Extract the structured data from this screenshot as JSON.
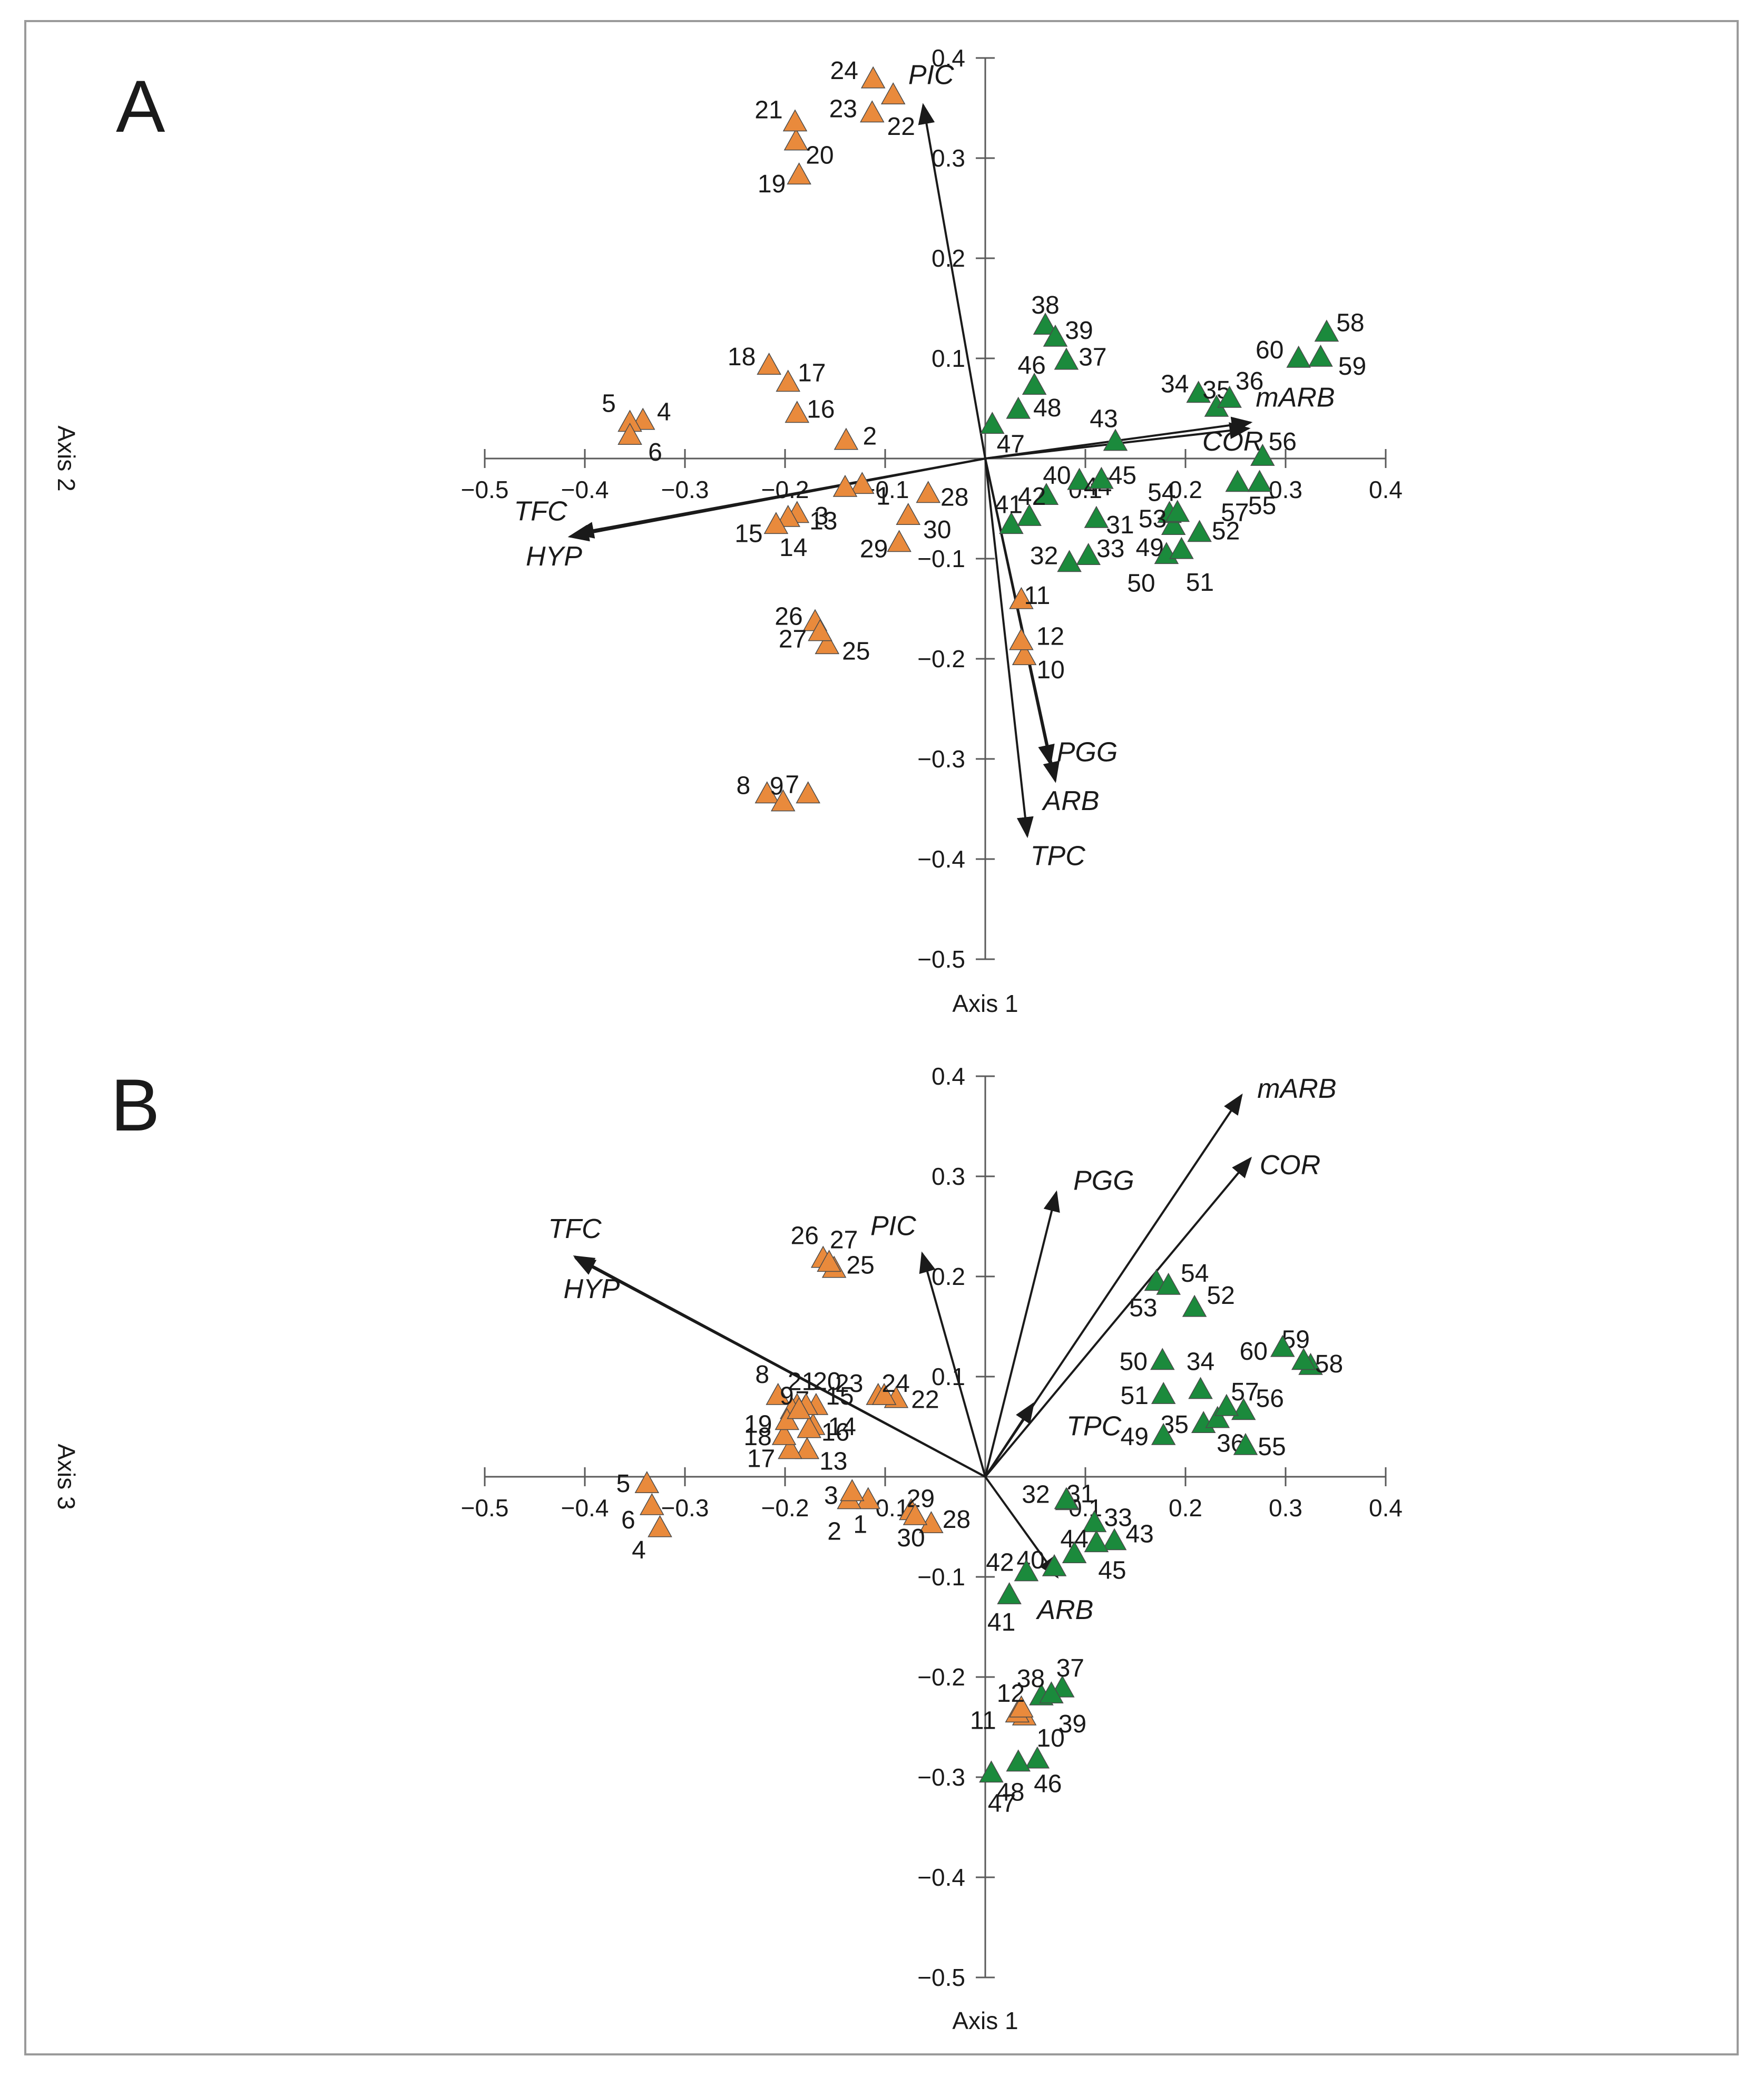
{
  "colors": {
    "group_a": "#e98a3c",
    "group_b": "#1b8a3c",
    "axis": "#5a5a5a",
    "vector": "#1a1a1a",
    "frame": "#9a9a9a"
  },
  "chart_data": [
    {
      "type": "scatter",
      "panel_label": "A",
      "xlabel": "Axis 1",
      "ylabel": "Axis 2",
      "xlim": [
        -0.5,
        0.4
      ],
      "ylim": [
        -0.5,
        0.4
      ],
      "x_ticks": [
        "−0.5",
        "−0.4",
        "−0.3",
        "−0.2",
        "−0.1",
        "0.1",
        "0.2",
        "0.3",
        "0.4"
      ],
      "y_ticks": [
        "0.4",
        "0.3",
        "0.2",
        "0.1",
        "−0.1",
        "−0.2",
        "−0.3",
        "−0.4",
        "−0.5"
      ],
      "series": [
        {
          "name": "orange",
          "color_key": "group_a",
          "points": [
            {
              "label": "1",
              "x": -0.123,
              "y": -0.027
            },
            {
              "label": "2",
              "x": -0.139,
              "y": 0.017
            },
            {
              "label": "3",
              "x": -0.14,
              "y": -0.03
            },
            {
              "label": "4",
              "x": -0.342,
              "y": 0.037
            },
            {
              "label": "5",
              "x": -0.355,
              "y": 0.035
            },
            {
              "label": "6",
              "x": -0.355,
              "y": 0.022
            },
            {
              "label": "7",
              "x": -0.177,
              "y": -0.336
            },
            {
              "label": "8",
              "x": -0.218,
              "y": -0.336
            },
            {
              "label": "9",
              "x": -0.202,
              "y": -0.344
            },
            {
              "label": "10",
              "x": 0.039,
              "y": -0.198
            },
            {
              "label": "11",
              "x": 0.036,
              "y": -0.142
            },
            {
              "label": "12",
              "x": 0.036,
              "y": -0.183
            },
            {
              "label": "13",
              "x": -0.188,
              "y": -0.056
            },
            {
              "label": "14",
              "x": -0.197,
              "y": -0.06
            },
            {
              "label": "15",
              "x": -0.209,
              "y": -0.067
            },
            {
              "label": "16",
              "x": -0.188,
              "y": 0.044
            },
            {
              "label": "17",
              "x": -0.197,
              "y": 0.075
            },
            {
              "label": "18",
              "x": -0.216,
              "y": 0.092
            },
            {
              "label": "19",
              "x": -0.186,
              "y": 0.282
            },
            {
              "label": "20",
              "x": -0.189,
              "y": 0.316
            },
            {
              "label": "21",
              "x": -0.19,
              "y": 0.335
            },
            {
              "label": "22",
              "x": -0.092,
              "y": 0.362
            },
            {
              "label": "23",
              "x": -0.113,
              "y": 0.344
            },
            {
              "label": "24",
              "x": -0.112,
              "y": 0.378
            },
            {
              "label": "25",
              "x": -0.158,
              "y": -0.187
            },
            {
              "label": "26",
              "x": -0.17,
              "y": -0.164
            },
            {
              "label": "27",
              "x": -0.165,
              "y": -0.174
            },
            {
              "label": "28",
              "x": -0.057,
              "y": -0.036
            },
            {
              "label": "29",
              "x": -0.086,
              "y": -0.085
            },
            {
              "label": "30",
              "x": -0.077,
              "y": -0.058
            }
          ]
        },
        {
          "name": "green",
          "color_key": "group_b",
          "points": [
            {
              "label": "31",
              "x": 0.111,
              "y": -0.061
            },
            {
              "label": "32",
              "x": 0.084,
              "y": -0.105
            },
            {
              "label": "33",
              "x": 0.103,
              "y": -0.098
            },
            {
              "label": "34",
              "x": 0.213,
              "y": 0.064
            },
            {
              "label": "35",
              "x": 0.231,
              "y": 0.05
            },
            {
              "label": "36",
              "x": 0.244,
              "y": 0.059
            },
            {
              "label": "37",
              "x": 0.081,
              "y": 0.097
            },
            {
              "label": "38",
              "x": 0.06,
              "y": 0.132
            },
            {
              "label": "39",
              "x": 0.07,
              "y": 0.12
            },
            {
              "label": "40",
              "x": 0.061,
              "y": -0.038
            },
            {
              "label": "41",
              "x": 0.026,
              "y": -0.067
            },
            {
              "label": "42",
              "x": 0.044,
              "y": -0.059
            },
            {
              "label": "43",
              "x": 0.13,
              "y": 0.016
            },
            {
              "label": "44",
              "x": 0.094,
              "y": -0.023
            },
            {
              "label": "45",
              "x": 0.116,
              "y": -0.022
            },
            {
              "label": "46",
              "x": 0.049,
              "y": 0.072
            },
            {
              "label": "47",
              "x": 0.007,
              "y": 0.033
            },
            {
              "label": "48",
              "x": 0.033,
              "y": 0.048
            },
            {
              "label": "49",
              "x": 0.188,
              "y": -0.068
            },
            {
              "label": "50",
              "x": 0.181,
              "y": -0.097
            },
            {
              "label": "51",
              "x": 0.196,
              "y": -0.092
            },
            {
              "label": "52",
              "x": 0.214,
              "y": -0.075
            },
            {
              "label": "53",
              "x": 0.184,
              "y": -0.056
            },
            {
              "label": "54",
              "x": 0.192,
              "y": -0.055
            },
            {
              "label": "55",
              "x": 0.274,
              "y": -0.025
            },
            {
              "label": "56",
              "x": 0.277,
              "y": 0.001
            },
            {
              "label": "57",
              "x": 0.252,
              "y": -0.025
            },
            {
              "label": "58",
              "x": 0.341,
              "y": 0.125
            },
            {
              "label": "59",
              "x": 0.335,
              "y": 0.1
            },
            {
              "label": "60",
              "x": 0.313,
              "y": 0.099
            }
          ]
        }
      ],
      "vectors": [
        {
          "label": "PIC",
          "x": -0.062,
          "y": 0.353
        },
        {
          "label": "TFC",
          "x": -0.41,
          "y": -0.075
        },
        {
          "label": "HYP",
          "x": -0.415,
          "y": -0.078
        },
        {
          "label": "mARB",
          "x": 0.265,
          "y": 0.036
        },
        {
          "label": "COR",
          "x": 0.263,
          "y": 0.03
        },
        {
          "label": "PGG",
          "x": 0.065,
          "y": -0.305
        },
        {
          "label": "ARB",
          "x": 0.07,
          "y": -0.322
        },
        {
          "label": "TPC",
          "x": 0.042,
          "y": -0.377
        }
      ]
    },
    {
      "type": "scatter",
      "panel_label": "B",
      "xlabel": "Axis 1",
      "ylabel": "Axis 3",
      "xlim": [
        -0.5,
        0.4
      ],
      "ylim": [
        -0.5,
        0.4
      ],
      "x_ticks": [
        "−0.5",
        "−0.4",
        "−0.3",
        "−0.2",
        "−0.1",
        "0.1",
        "0.2",
        "0.3",
        "0.4"
      ],
      "y_ticks": [
        "0.4",
        "0.3",
        "0.2",
        "0.1",
        "−0.1",
        "−0.2",
        "−0.3",
        "−0.4",
        "−0.5"
      ],
      "series": [
        {
          "name": "orange",
          "color_key": "group_a",
          "points": [
            {
              "label": "1",
              "x": -0.117,
              "y": -0.024
            },
            {
              "label": "2",
              "x": -0.136,
              "y": -0.024
            },
            {
              "label": "3",
              "x": -0.133,
              "y": -0.016
            },
            {
              "label": "4",
              "x": -0.325,
              "y": -0.052
            },
            {
              "label": "5",
              "x": -0.338,
              "y": -0.008
            },
            {
              "label": "6",
              "x": -0.333,
              "y": -0.03
            },
            {
              "label": "7",
              "x": -0.188,
              "y": 0.07
            },
            {
              "label": "8",
              "x": -0.207,
              "y": 0.08
            },
            {
              "label": "9",
              "x": -0.193,
              "y": 0.066
            },
            {
              "label": "10",
              "x": 0.039,
              "y": -0.24
            },
            {
              "label": "11",
              "x": 0.032,
              "y": -0.237
            },
            {
              "label": "12",
              "x": 0.036,
              "y": -0.232
            },
            {
              "label": "13",
              "x": -0.178,
              "y": 0.026
            },
            {
              "label": "14",
              "x": -0.172,
              "y": 0.05
            },
            {
              "label": "15",
              "x": -0.169,
              "y": 0.07
            },
            {
              "label": "16",
              "x": -0.176,
              "y": 0.047
            },
            {
              "label": "17",
              "x": -0.195,
              "y": 0.026
            },
            {
              "label": "18",
              "x": -0.201,
              "y": 0.04
            },
            {
              "label": "19",
              "x": -0.198,
              "y": 0.055
            },
            {
              "label": "20",
              "x": -0.179,
              "y": 0.07
            },
            {
              "label": "21",
              "x": -0.186,
              "y": 0.066
            },
            {
              "label": "22",
              "x": -0.089,
              "y": 0.077
            },
            {
              "label": "23",
              "x": -0.107,
              "y": 0.08
            },
            {
              "label": "24",
              "x": -0.101,
              "y": 0.08
            },
            {
              "label": "25",
              "x": -0.151,
              "y": 0.207
            },
            {
              "label": "26",
              "x": -0.162,
              "y": 0.217
            },
            {
              "label": "27",
              "x": -0.156,
              "y": 0.213
            },
            {
              "label": "28",
              "x": -0.054,
              "y": -0.048
            },
            {
              "label": "29",
              "x": -0.074,
              "y": -0.035
            },
            {
              "label": "30",
              "x": -0.07,
              "y": -0.04
            }
          ]
        },
        {
          "name": "green",
          "color_key": "group_b",
          "points": [
            {
              "label": "31",
              "x": 0.082,
              "y": -0.025
            },
            {
              "label": "32",
              "x": 0.081,
              "y": -0.024
            },
            {
              "label": "33",
              "x": 0.109,
              "y": -0.047
            },
            {
              "label": "34",
              "x": 0.215,
              "y": 0.086
            },
            {
              "label": "35",
              "x": 0.218,
              "y": 0.052
            },
            {
              "label": "36",
              "x": 0.232,
              "y": 0.057
            },
            {
              "label": "37",
              "x": 0.077,
              "y": -0.212
            },
            {
              "label": "38",
              "x": 0.056,
              "y": -0.22
            },
            {
              "label": "39",
              "x": 0.066,
              "y": -0.218
            },
            {
              "label": "40",
              "x": 0.069,
              "y": -0.091
            },
            {
              "label": "41",
              "x": 0.024,
              "y": -0.119
            },
            {
              "label": "42",
              "x": 0.041,
              "y": -0.096
            },
            {
              "label": "43",
              "x": 0.129,
              "y": -0.065
            },
            {
              "label": "44",
              "x": 0.089,
              "y": -0.078
            },
            {
              "label": "45",
              "x": 0.111,
              "y": -0.067
            },
            {
              "label": "46",
              "x": 0.052,
              "y": -0.283
            },
            {
              "label": "47",
              "x": 0.006,
              "y": -0.297
            },
            {
              "label": "48",
              "x": 0.033,
              "y": -0.286
            },
            {
              "label": "49",
              "x": 0.178,
              "y": 0.04
            },
            {
              "label": "50",
              "x": 0.177,
              "y": 0.115
            },
            {
              "label": "51",
              "x": 0.178,
              "y": 0.081
            },
            {
              "label": "52",
              "x": 0.209,
              "y": 0.168
            },
            {
              "label": "53",
              "x": 0.171,
              "y": 0.194
            },
            {
              "label": "54",
              "x": 0.183,
              "y": 0.19
            },
            {
              "label": "55",
              "x": 0.26,
              "y": 0.03
            },
            {
              "label": "56",
              "x": 0.258,
              "y": 0.065
            },
            {
              "label": "57",
              "x": 0.241,
              "y": 0.069
            },
            {
              "label": "58",
              "x": 0.325,
              "y": 0.11
            },
            {
              "label": "59",
              "x": 0.318,
              "y": 0.115
            },
            {
              "label": "60",
              "x": 0.297,
              "y": 0.128
            }
          ]
        }
      ],
      "vectors": [
        {
          "label": "TFC",
          "x": -0.41,
          "y": 0.22
        },
        {
          "label": "HYP",
          "x": -0.409,
          "y": 0.218
        },
        {
          "label": "PIC",
          "x": -0.063,
          "y": 0.223
        },
        {
          "label": "PGG",
          "x": 0.071,
          "y": 0.284
        },
        {
          "label": "mARB",
          "x": 0.256,
          "y": 0.381
        },
        {
          "label": "COR",
          "x": 0.265,
          "y": 0.318
        },
        {
          "label": "TPC",
          "x": 0.048,
          "y": 0.073
        },
        {
          "label": "ARB",
          "x": 0.072,
          "y": -0.1
        }
      ]
    }
  ]
}
